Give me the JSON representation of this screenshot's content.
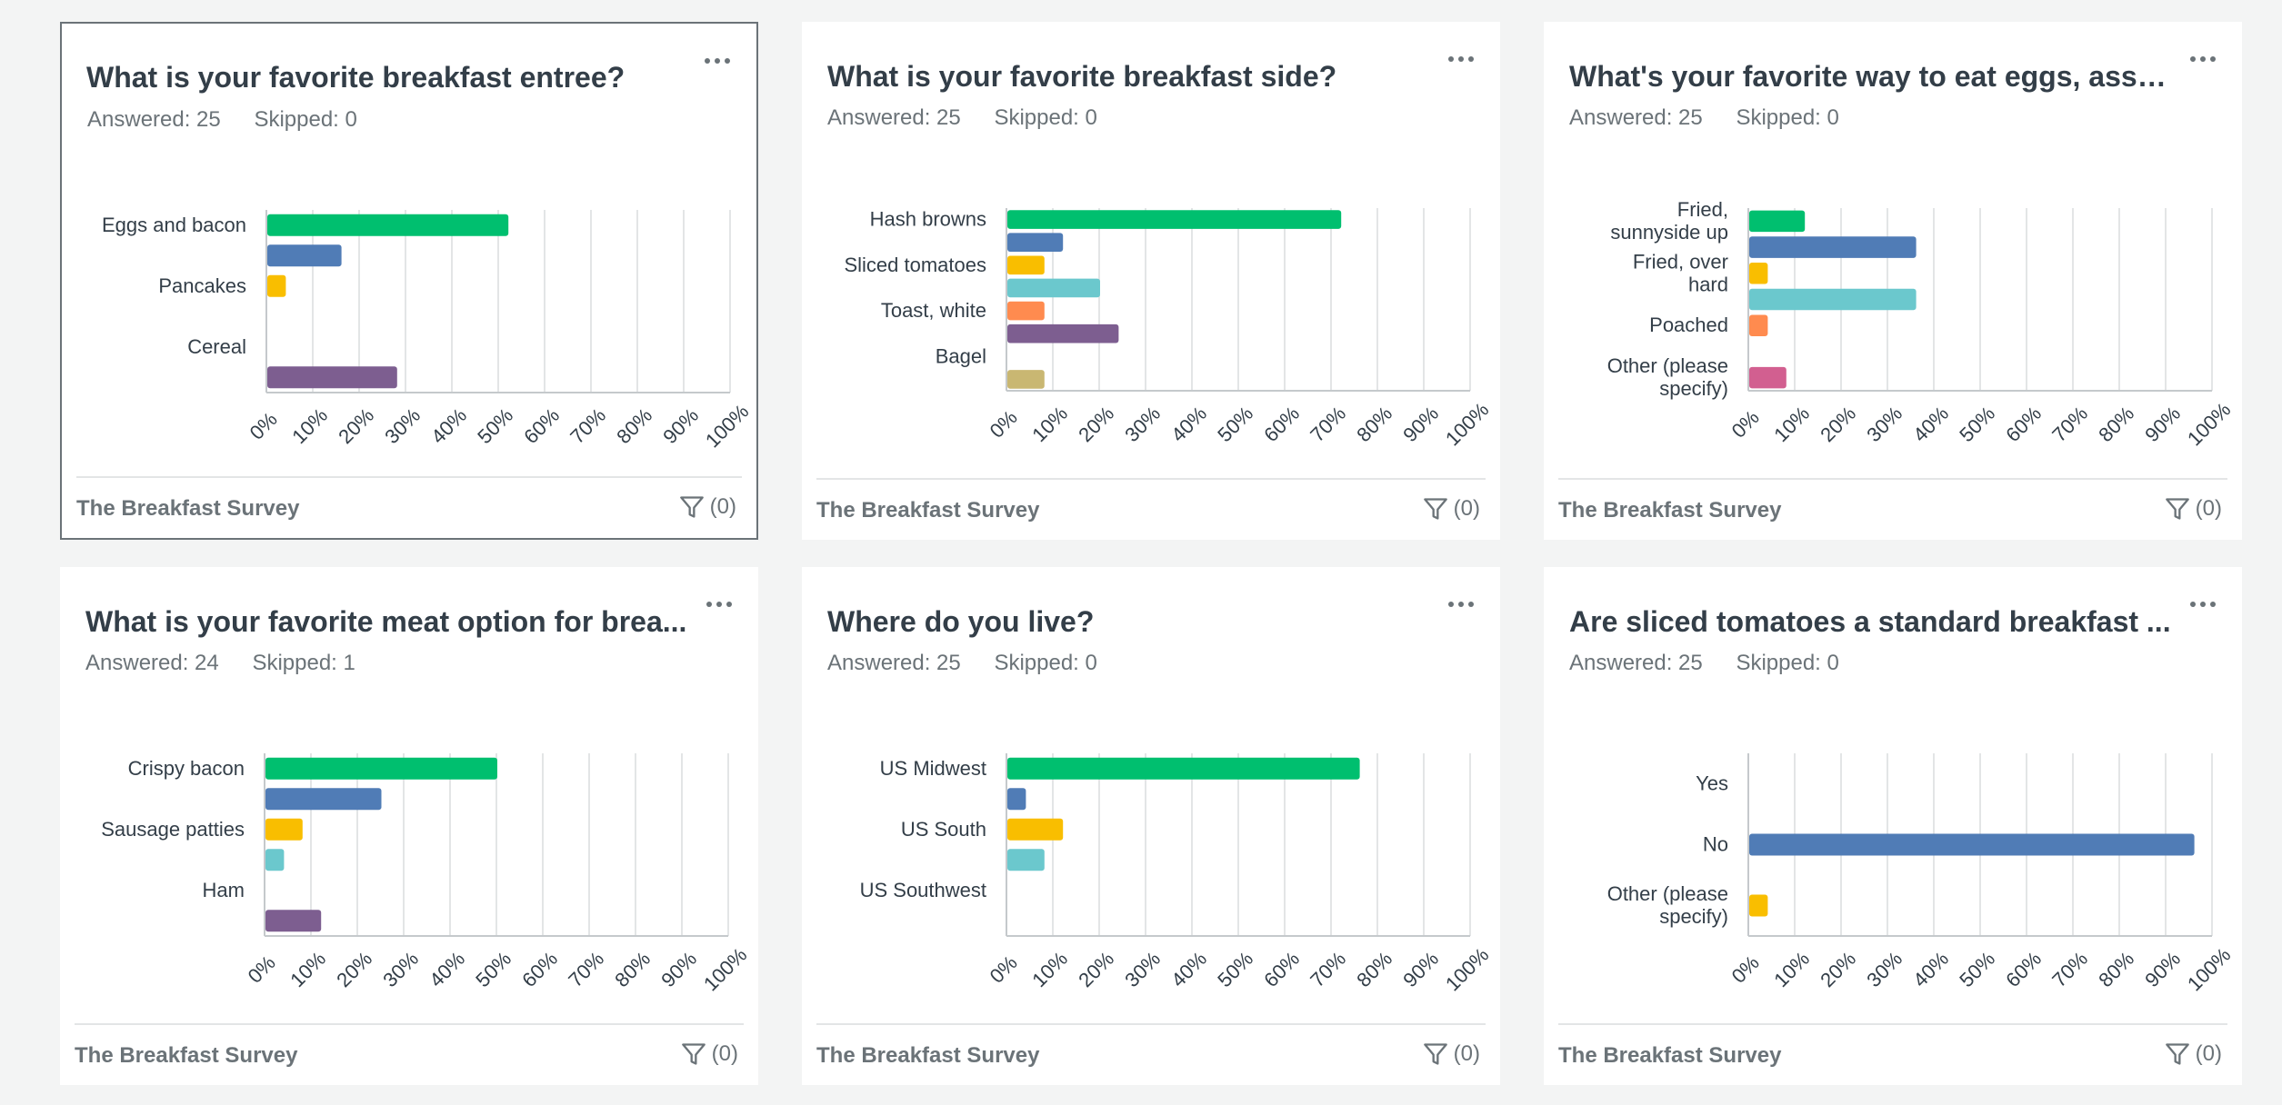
{
  "cards": [
    {
      "title": "What is your favorite breakfast entree?",
      "answered_label": "Answered: 25",
      "skipped_label": "Skipped: 0",
      "footer_survey": "The Breakfast Survey",
      "filter_count": "(0)",
      "selected": true
    },
    {
      "title": "What is your favorite breakfast side?",
      "answered_label": "Answered: 25",
      "skipped_label": "Skipped: 0",
      "footer_survey": "The Breakfast Survey",
      "filter_count": "(0)",
      "selected": false
    },
    {
      "title": "What's your favorite way to eat eggs, assu...",
      "answered_label": "Answered: 25",
      "skipped_label": "Skipped: 0",
      "footer_survey": "The Breakfast Survey",
      "filter_count": "(0)",
      "selected": false
    },
    {
      "title": "What is your favorite meat option for brea...",
      "answered_label": "Answered: 24",
      "skipped_label": "Skipped: 1",
      "footer_survey": "The Breakfast Survey",
      "filter_count": "(0)",
      "selected": false
    },
    {
      "title": "Where do you live?",
      "answered_label": "Answered: 25",
      "skipped_label": "Skipped: 0",
      "footer_survey": "The Breakfast Survey",
      "filter_count": "(0)",
      "selected": false
    },
    {
      "title": "Are sliced tomatoes a standard breakfast ...",
      "answered_label": "Answered: 25",
      "skipped_label": "Skipped: 0",
      "footer_survey": "The Breakfast Survey",
      "filter_count": "(0)",
      "selected": false
    }
  ],
  "chart_data": [
    {
      "type": "bar",
      "orientation": "horizontal",
      "x_ticks": [
        "0%",
        "10%",
        "20%",
        "30%",
        "40%",
        "50%",
        "60%",
        "70%",
        "80%",
        "90%",
        "100%"
      ],
      "xlim": [
        0,
        100
      ],
      "labels": [
        "Eggs and bacon",
        "",
        "Pancakes",
        "",
        "Cereal",
        ""
      ],
      "values": [
        52,
        16,
        4,
        0,
        0,
        28
      ],
      "colors": [
        "#00bf6f",
        "#507cb6",
        "#f9be00",
        "#6bc8cd",
        "#ff8b4f",
        "#7d5e90"
      ]
    },
    {
      "type": "bar",
      "orientation": "horizontal",
      "x_ticks": [
        "0%",
        "10%",
        "20%",
        "30%",
        "40%",
        "50%",
        "60%",
        "70%",
        "80%",
        "90%",
        "100%"
      ],
      "xlim": [
        0,
        100
      ],
      "labels": [
        "Hash browns",
        "",
        "Sliced tomatoes",
        "",
        "Toast, white",
        "",
        "Bagel",
        ""
      ],
      "values": [
        72,
        12,
        8,
        20,
        8,
        24,
        0,
        8
      ],
      "colors": [
        "#00bf6f",
        "#507cb6",
        "#f9be00",
        "#6bc8cd",
        "#ff8b4f",
        "#7d5e90",
        "#d25f90",
        "#c9b772"
      ]
    },
    {
      "type": "bar",
      "orientation": "horizontal",
      "x_ticks": [
        "0%",
        "10%",
        "20%",
        "30%",
        "40%",
        "50%",
        "60%",
        "70%",
        "80%",
        "90%",
        "100%"
      ],
      "xlim": [
        0,
        100
      ],
      "labels": [
        "Fried,\nsunnyside up",
        "",
        "Fried, over\nhard",
        "",
        "Poached",
        "",
        "Other (please\nspecify)"
      ],
      "values": [
        12,
        36,
        4,
        36,
        4,
        0,
        8
      ],
      "colors": [
        "#00bf6f",
        "#507cb6",
        "#f9be00",
        "#6bc8cd",
        "#ff8b4f",
        "#7d5e90",
        "#d25f90"
      ]
    },
    {
      "type": "bar",
      "orientation": "horizontal",
      "x_ticks": [
        "0%",
        "10%",
        "20%",
        "30%",
        "40%",
        "50%",
        "60%",
        "70%",
        "80%",
        "90%",
        "100%"
      ],
      "xlim": [
        0,
        100
      ],
      "labels": [
        "Crispy bacon",
        "",
        "Sausage patties",
        "",
        "Ham",
        ""
      ],
      "values": [
        50,
        25,
        8,
        4,
        0,
        12
      ],
      "colors": [
        "#00bf6f",
        "#507cb6",
        "#f9be00",
        "#6bc8cd",
        "#ff8b4f",
        "#7d5e90"
      ]
    },
    {
      "type": "bar",
      "orientation": "horizontal",
      "x_ticks": [
        "0%",
        "10%",
        "20%",
        "30%",
        "40%",
        "50%",
        "60%",
        "70%",
        "80%",
        "90%",
        "100%"
      ],
      "xlim": [
        0,
        100
      ],
      "labels": [
        "US Midwest",
        "",
        "US South",
        "",
        "US Southwest",
        ""
      ],
      "values": [
        76,
        4,
        12,
        8,
        0,
        0
      ],
      "colors": [
        "#00bf6f",
        "#507cb6",
        "#f9be00",
        "#6bc8cd",
        "#ff8b4f",
        "#7d5e90"
      ]
    },
    {
      "type": "bar",
      "orientation": "horizontal",
      "x_ticks": [
        "0%",
        "10%",
        "20%",
        "30%",
        "40%",
        "50%",
        "60%",
        "70%",
        "80%",
        "90%",
        "100%"
      ],
      "xlim": [
        0,
        100
      ],
      "labels": [
        "Yes",
        "No",
        "Other (please\nspecify)"
      ],
      "values": [
        0,
        96,
        4
      ],
      "colors": [
        "#00bf6f",
        "#507cb6",
        "#f9be00"
      ]
    }
  ],
  "colors": {
    "page_bg": "#f3f4f4",
    "card_bg": "#ffffff",
    "title_text": "#333e48",
    "muted_text": "#6b7378",
    "grid": "#e3e5e6"
  },
  "icons": {
    "more": "more-options-icon",
    "filter": "filter-icon"
  }
}
